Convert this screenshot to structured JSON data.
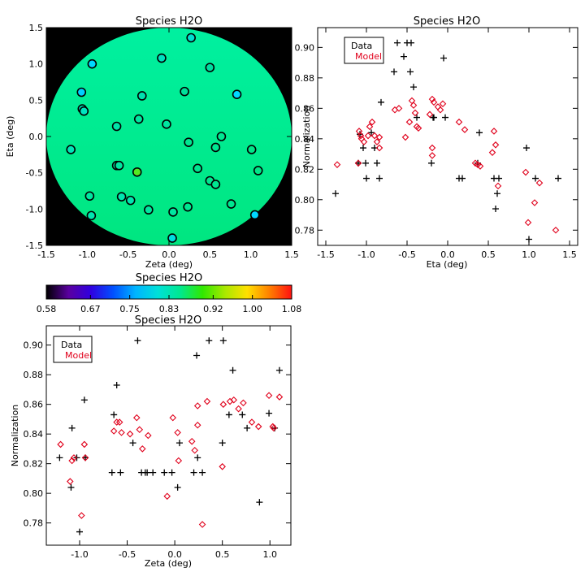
{
  "chart_data": [
    {
      "id": "map",
      "type": "heatmap",
      "title": "Species H2O",
      "xlabel": "Zeta (deg)",
      "ylabel": "Eta (deg)",
      "xlim": [
        -1.5,
        1.5
      ],
      "ylim": [
        -1.5,
        1.5
      ],
      "xticks": [
        "-1.5",
        "-1.0",
        "-0.5",
        "0.0",
        "0.5",
        "1.0",
        "1.5"
      ],
      "yticks": [
        "-1.5",
        "-1.0",
        "-0.5",
        "0.0",
        "0.5",
        "1.0",
        "1.5"
      ],
      "background": "#000000",
      "field_colors": [
        "#00f0a0",
        "#00e680"
      ],
      "points": [
        {
          "x": 0.27,
          "y": 1.36,
          "c": "#00ddd0"
        },
        {
          "x": -0.09,
          "y": 1.08,
          "c": "#00e0c0"
        },
        {
          "x": -0.94,
          "y": 1.0,
          "c": "#00d8ff"
        },
        {
          "x": 0.5,
          "y": 0.95,
          "c": "#00dda0"
        },
        {
          "x": -1.07,
          "y": 0.61,
          "c": "#00d0ff"
        },
        {
          "x": 0.19,
          "y": 0.62,
          "c": "#00e09a"
        },
        {
          "x": 0.83,
          "y": 0.58,
          "c": "#00d8ff"
        },
        {
          "x": -0.33,
          "y": 0.56,
          "c": "#00e0b0"
        },
        {
          "x": -1.06,
          "y": 0.38,
          "c": "#00e4c0"
        },
        {
          "x": -1.04,
          "y": 0.35,
          "c": "#00e4c0"
        },
        {
          "x": -0.37,
          "y": 0.24,
          "c": "#00e6a0"
        },
        {
          "x": -0.03,
          "y": 0.17,
          "c": "#00e6a0"
        },
        {
          "x": -0.64,
          "y": 0.14,
          "c": "#00e4a8"
        },
        {
          "x": 0.64,
          "y": 0.0,
          "c": "#00e692"
        },
        {
          "x": 0.24,
          "y": -0.08,
          "c": "#00e690"
        },
        {
          "x": -1.2,
          "y": -0.18,
          "c": "#00e6b8"
        },
        {
          "x": 0.57,
          "y": -0.15,
          "c": "#00e692"
        },
        {
          "x": 1.01,
          "y": -0.18,
          "c": "#00e688"
        },
        {
          "x": -0.64,
          "y": -0.4,
          "c": "#00e6a0"
        },
        {
          "x": -0.61,
          "y": -0.4,
          "c": "#00e6a0"
        },
        {
          "x": 0.35,
          "y": -0.44,
          "c": "#00e690"
        },
        {
          "x": -0.39,
          "y": -0.49,
          "c": "#55ea22"
        },
        {
          "x": 1.09,
          "y": -0.47,
          "c": "#00e688"
        },
        {
          "x": 0.5,
          "y": -0.61,
          "c": "#00e690"
        },
        {
          "x": 0.57,
          "y": -0.66,
          "c": "#00e690"
        },
        {
          "x": -0.97,
          "y": -0.82,
          "c": "#00e6a0"
        },
        {
          "x": -0.58,
          "y": -0.83,
          "c": "#00e6b0"
        },
        {
          "x": -0.47,
          "y": -0.88,
          "c": "#00e6b0"
        },
        {
          "x": 0.76,
          "y": -0.93,
          "c": "#00e690"
        },
        {
          "x": 0.23,
          "y": -0.97,
          "c": "#00e690"
        },
        {
          "x": -0.25,
          "y": -1.01,
          "c": "#00e6a0"
        },
        {
          "x": 0.05,
          "y": -1.04,
          "c": "#00e6a0"
        },
        {
          "x": -0.95,
          "y": -1.09,
          "c": "#00e6b0"
        },
        {
          "x": 1.05,
          "y": -1.08,
          "c": "#00d8ff"
        },
        {
          "x": 0.04,
          "y": -1.4,
          "c": "#00dde0"
        }
      ]
    },
    {
      "id": "eta",
      "type": "scatter",
      "title": "Species H2O",
      "xlabel": "Eta (deg)",
      "ylabel": "Normalization",
      "xlim": [
        -1.6,
        1.6
      ],
      "ylim": [
        0.77,
        0.913
      ],
      "xticks": [
        "-1.5",
        "-1.0",
        "-0.5",
        "0.0",
        "0.5",
        "1.0",
        "1.5"
      ],
      "yticks": [
        "0.78",
        "0.80",
        "0.82",
        "0.84",
        "0.86",
        "0.88",
        "0.90"
      ],
      "legend": {
        "position": "top-left",
        "entries": [
          "Data",
          "Model"
        ]
      },
      "series": [
        {
          "name": "Data",
          "marker": "plus",
          "color": "#000000",
          "points": [
            [
              -1.38,
              0.804
            ],
            [
              -1.1,
              0.824
            ],
            [
              -1.08,
              0.843
            ],
            [
              -1.04,
              0.834
            ],
            [
              -1.01,
              0.824
            ],
            [
              -1.0,
              0.814
            ],
            [
              -0.94,
              0.844
            ],
            [
              -0.9,
              0.834
            ],
            [
              -0.87,
              0.824
            ],
            [
              -0.84,
              0.814
            ],
            [
              -0.82,
              0.864
            ],
            [
              -0.66,
              0.884
            ],
            [
              -0.62,
              0.903
            ],
            [
              -0.54,
              0.894
            ],
            [
              -0.5,
              0.903
            ],
            [
              -0.46,
              0.884
            ],
            [
              -0.45,
              0.903
            ],
            [
              -0.42,
              0.874
            ],
            [
              -0.38,
              0.854
            ],
            [
              -0.2,
              0.824
            ],
            [
              -0.18,
              0.854
            ],
            [
              -0.17,
              0.854
            ],
            [
              -0.05,
              0.893
            ],
            [
              -0.03,
              0.854
            ],
            [
              0.14,
              0.814
            ],
            [
              0.18,
              0.814
            ],
            [
              0.37,
              0.824
            ],
            [
              0.39,
              0.844
            ],
            [
              0.57,
              0.814
            ],
            [
              0.59,
              0.794
            ],
            [
              0.61,
              0.804
            ],
            [
              0.63,
              0.814
            ],
            [
              0.97,
              0.834
            ],
            [
              1.0,
              0.774
            ],
            [
              1.08,
              0.814
            ],
            [
              1.36,
              0.814
            ]
          ]
        },
        {
          "name": "Model",
          "marker": "diamond",
          "color": "#e0001b",
          "points": [
            [
              -1.36,
              0.823
            ],
            [
              -1.1,
              0.824
            ],
            [
              -1.09,
              0.845
            ],
            [
              -1.07,
              0.842
            ],
            [
              -1.06,
              0.84
            ],
            [
              -1.03,
              0.838
            ],
            [
              -0.98,
              0.842
            ],
            [
              -0.96,
              0.848
            ],
            [
              -0.93,
              0.851
            ],
            [
              -0.9,
              0.842
            ],
            [
              -0.87,
              0.838
            ],
            [
              -0.84,
              0.841
            ],
            [
              -0.84,
              0.834
            ],
            [
              -0.65,
              0.859
            ],
            [
              -0.6,
              0.86
            ],
            [
              -0.52,
              0.841
            ],
            [
              -0.47,
              0.851
            ],
            [
              -0.44,
              0.865
            ],
            [
              -0.42,
              0.862
            ],
            [
              -0.4,
              0.857
            ],
            [
              -0.38,
              0.848
            ],
            [
              -0.36,
              0.847
            ],
            [
              -0.22,
              0.856
            ],
            [
              -0.19,
              0.866
            ],
            [
              -0.17,
              0.864
            ],
            [
              -0.19,
              0.834
            ],
            [
              -0.19,
              0.829
            ],
            [
              -0.12,
              0.861
            ],
            [
              -0.09,
              0.859
            ],
            [
              -0.06,
              0.863
            ],
            [
              0.14,
              0.851
            ],
            [
              0.21,
              0.846
            ],
            [
              0.34,
              0.824
            ],
            [
              0.37,
              0.823
            ],
            [
              0.4,
              0.822
            ],
            [
              0.55,
              0.831
            ],
            [
              0.57,
              0.845
            ],
            [
              0.59,
              0.836
            ],
            [
              0.62,
              0.809
            ],
            [
              0.96,
              0.818
            ],
            [
              0.99,
              0.785
            ],
            [
              1.07,
              0.798
            ],
            [
              1.13,
              0.811
            ],
            [
              1.33,
              0.78
            ]
          ]
        }
      ]
    },
    {
      "id": "cbar",
      "type": "heatmap",
      "title": "Species H2O",
      "range": [
        0.58,
        1.08
      ],
      "ticks": [
        "0.58",
        "0.67",
        "0.75",
        "0.83",
        "0.92",
        "1.00",
        "1.08"
      ],
      "colors": [
        "#000000",
        "#5a00a0",
        "#3000e0",
        "#0050ff",
        "#00b4ff",
        "#00e0d8",
        "#00e890",
        "#30e800",
        "#a8e800",
        "#ffe000",
        "#ff8000",
        "#ff1010"
      ]
    },
    {
      "id": "zeta",
      "type": "scatter",
      "title": "Species H2O",
      "xlabel": "Zeta (deg)",
      "ylabel": "Normalization",
      "xlim": [
        -1.35,
        1.22
      ],
      "ylim": [
        0.765,
        0.913
      ],
      "xticks": [
        "-1.0",
        "-0.5",
        "0.0",
        "0.5",
        "1.0"
      ],
      "yticks": [
        "0.78",
        "0.80",
        "0.82",
        "0.84",
        "0.86",
        "0.88",
        "0.90"
      ],
      "legend": {
        "position": "top-left",
        "entries": [
          "Data",
          "Model"
        ]
      },
      "series": [
        {
          "name": "Data",
          "marker": "plus",
          "color": "#000000",
          "points": [
            [
              -1.21,
              0.824
            ],
            [
              -1.09,
              0.804
            ],
            [
              -1.08,
              0.844
            ],
            [
              -1.03,
              0.824
            ],
            [
              -1.0,
              0.774
            ],
            [
              -0.95,
              0.863
            ],
            [
              -0.94,
              0.824
            ],
            [
              -0.66,
              0.814
            ],
            [
              -0.64,
              0.853
            ],
            [
              -0.61,
              0.873
            ],
            [
              -0.57,
              0.814
            ],
            [
              -0.44,
              0.834
            ],
            [
              -0.39,
              0.903
            ],
            [
              -0.35,
              0.814
            ],
            [
              -0.31,
              0.814
            ],
            [
              -0.29,
              0.814
            ],
            [
              -0.23,
              0.814
            ],
            [
              -0.11,
              0.814
            ],
            [
              -0.03,
              0.814
            ],
            [
              0.03,
              0.804
            ],
            [
              0.05,
              0.834
            ],
            [
              0.2,
              0.814
            ],
            [
              0.23,
              0.893
            ],
            [
              0.24,
              0.824
            ],
            [
              0.29,
              0.814
            ],
            [
              0.36,
              0.903
            ],
            [
              0.5,
              0.834
            ],
            [
              0.51,
              0.903
            ],
            [
              0.57,
              0.853
            ],
            [
              0.61,
              0.883
            ],
            [
              0.71,
              0.853
            ],
            [
              0.76,
              0.844
            ],
            [
              0.89,
              0.794
            ],
            [
              0.99,
              0.854
            ],
            [
              1.05,
              0.844
            ],
            [
              1.1,
              0.883
            ]
          ]
        },
        {
          "name": "Model",
          "marker": "diamond",
          "color": "#e0001b",
          "points": [
            [
              -1.2,
              0.833
            ],
            [
              -1.1,
              0.808
            ],
            [
              -1.08,
              0.822
            ],
            [
              -1.06,
              0.824
            ],
            [
              -0.98,
              0.785
            ],
            [
              -0.95,
              0.833
            ],
            [
              -0.94,
              0.824
            ],
            [
              -0.64,
              0.842
            ],
            [
              -0.61,
              0.848
            ],
            [
              -0.58,
              0.848
            ],
            [
              -0.56,
              0.841
            ],
            [
              -0.47,
              0.84
            ],
            [
              -0.4,
              0.851
            ],
            [
              -0.37,
              0.843
            ],
            [
              -0.34,
              0.83
            ],
            [
              -0.28,
              0.839
            ],
            [
              -0.08,
              0.798
            ],
            [
              -0.02,
              0.851
            ],
            [
              0.03,
              0.841
            ],
            [
              0.04,
              0.822
            ],
            [
              0.18,
              0.835
            ],
            [
              0.21,
              0.829
            ],
            [
              0.24,
              0.859
            ],
            [
              0.24,
              0.846
            ],
            [
              0.29,
              0.779
            ],
            [
              0.34,
              0.862
            ],
            [
              0.5,
              0.818
            ],
            [
              0.51,
              0.86
            ],
            [
              0.58,
              0.862
            ],
            [
              0.62,
              0.863
            ],
            [
              0.67,
              0.857
            ],
            [
              0.72,
              0.861
            ],
            [
              0.81,
              0.848
            ],
            [
              0.88,
              0.845
            ],
            [
              0.99,
              0.866
            ],
            [
              1.03,
              0.845
            ],
            [
              1.04,
              0.844
            ],
            [
              1.1,
              0.865
            ]
          ]
        }
      ]
    }
  ]
}
